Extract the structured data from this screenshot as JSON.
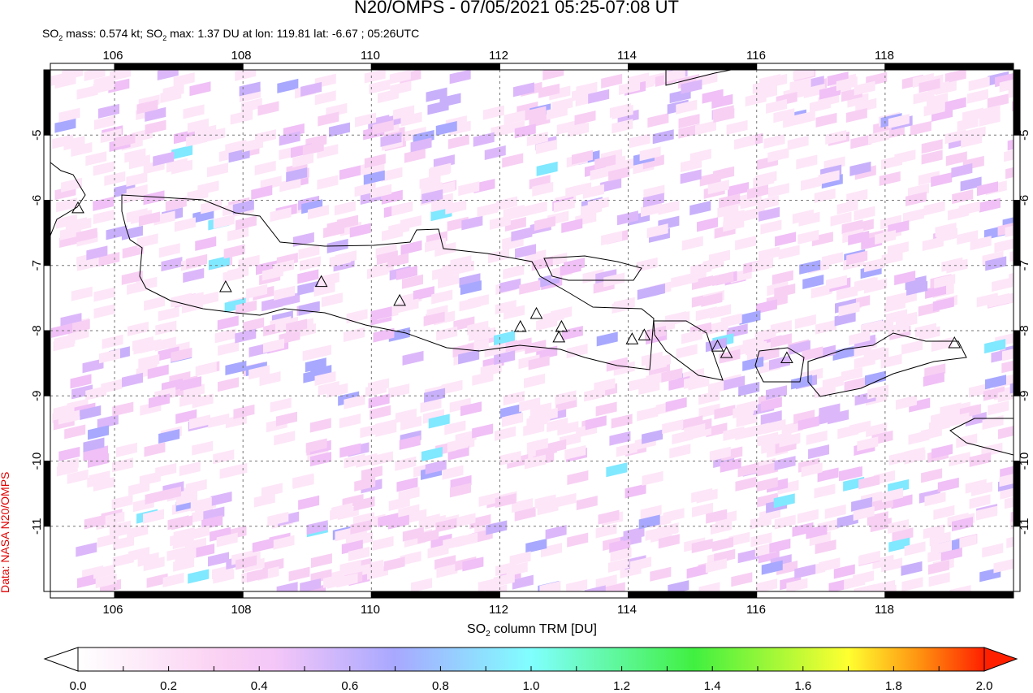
{
  "title": "N20/OMPS - 07/05/2021 05:25-07:08 UT",
  "subtitle": {
    "so": "SO",
    "sub": "2",
    "mass_text": " mass: 0.574 kt; SO",
    "max_text": " max: 1.37 DU at lon: 119.81 lat: -6.67 ; 05:26UTC"
  },
  "credit": "Data: NASA N20/OMPS",
  "map": {
    "lon_range": [
      105,
      120
    ],
    "lat_range": [
      -12,
      -4
    ],
    "lon_ticks": [
      "106",
      "108",
      "110",
      "112",
      "114",
      "116",
      "118"
    ],
    "lat_ticks": [
      "-5",
      "-6",
      "-7",
      "-8",
      "-9",
      "-10",
      "-11"
    ],
    "gridlines": true,
    "volcanoes": [
      {
        "lon": 105.43,
        "lat": -6.13
      },
      {
        "lon": 107.73,
        "lat": -7.34
      },
      {
        "lon": 109.22,
        "lat": -7.26
      },
      {
        "lon": 110.44,
        "lat": -7.55
      },
      {
        "lon": 112.32,
        "lat": -7.95
      },
      {
        "lon": 112.57,
        "lat": -7.75
      },
      {
        "lon": 112.96,
        "lat": -7.95
      },
      {
        "lon": 112.92,
        "lat": -8.11
      },
      {
        "lon": 114.06,
        "lat": -8.14
      },
      {
        "lon": 114.25,
        "lat": -8.08
      },
      {
        "lon": 115.39,
        "lat": -8.25
      },
      {
        "lon": 115.53,
        "lat": -8.35
      },
      {
        "lon": 116.47,
        "lat": -8.43
      },
      {
        "lon": 119.08,
        "lat": -8.2
      }
    ]
  },
  "colorbar": {
    "label_main": "SO",
    "label_sub": "2",
    "label_rest": " column TRM [DU]",
    "range": [
      0,
      2
    ],
    "tick_labels": [
      "0.0",
      "0.2",
      "0.4",
      "0.6",
      "0.8",
      "1.0",
      "1.2",
      "1.4",
      "1.6",
      "1.8",
      "2.0"
    ],
    "colors": [
      "#ffffff",
      "#fbd3f3",
      "#f5c8f8",
      "#a8a8ff",
      "#80ffff",
      "#40ff40",
      "#ffff30",
      "#ff9010",
      "#ff2000"
    ]
  }
}
